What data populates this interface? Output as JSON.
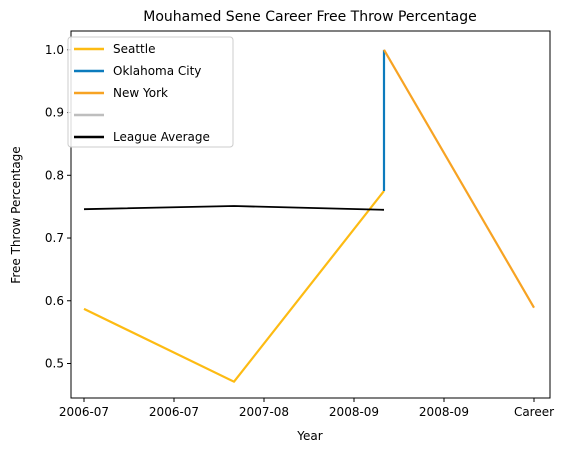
{
  "chart_data": {
    "type": "line",
    "title": "Mouhamed Sene Career Free Throw Percentage",
    "xlabel": "Year",
    "ylabel": "Free Throw Percentage",
    "x_tick_labels": [
      "2006-07",
      "2006-07",
      "2007-08",
      "2008-09",
      "2008-09",
      "Career"
    ],
    "x_range": [
      -0.2,
      5.2
    ],
    "ylim": [
      0.445,
      1.03
    ],
    "y_ticks": [
      0.5,
      0.6,
      0.7,
      0.8,
      0.9,
      1.0
    ],
    "grid": false,
    "legend_position": "top-left",
    "series": [
      {
        "name": "Seattle",
        "color": "#FDBB13",
        "x": [
          0,
          2,
          4
        ],
        "y": [
          0.587,
          0.471,
          0.775
        ]
      },
      {
        "name": "Oklahoma City",
        "color": "#0C7BBD",
        "x": [
          4,
          4
        ],
        "y": [
          0.775,
          1.0
        ]
      },
      {
        "name": "New York",
        "color": "#F7A323",
        "x": [
          4,
          6
        ],
        "y": [
          1.0,
          0.589
        ]
      },
      {
        "name": "",
        "color": "#BEBEBE",
        "x": [],
        "y": []
      },
      {
        "name": "League Average",
        "color": "#000000",
        "x": [
          0,
          2,
          4
        ],
        "y": [
          0.746,
          0.751,
          0.745
        ]
      }
    ]
  }
}
